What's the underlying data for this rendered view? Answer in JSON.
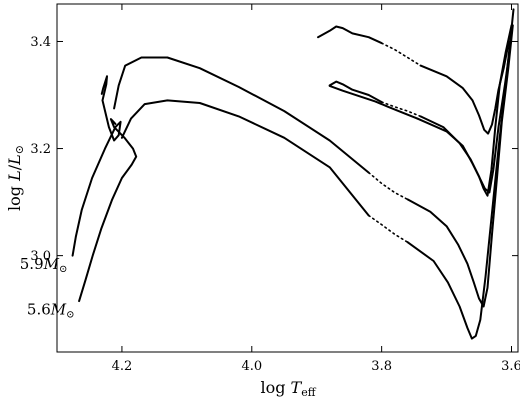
{
  "chart_data": {
    "type": "line",
    "title": "",
    "xlabel": "log T_eff",
    "ylabel": "log L/L_sun",
    "xlim": [
      4.3,
      3.59
    ],
    "ylim": [
      2.82,
      3.47
    ],
    "x_inverted": true,
    "grid": false,
    "xticks": [
      4.2,
      4.0,
      3.8,
      3.6
    ],
    "yticks": [
      3.0,
      3.2,
      3.4
    ],
    "xtick_labels": [
      "4.2",
      "4.0",
      "3.8",
      "3.6"
    ],
    "ytick_labels": [
      "3.0",
      "3.2",
      "3.4"
    ],
    "series": [
      {
        "name": "5.9M☉",
        "segments": [
          {
            "style": "solid",
            "x": [
              4.276,
              4.271,
              4.262,
              4.246,
              4.226,
              4.21,
              4.202,
              4.205,
              4.212,
              4.22,
              4.23,
              4.224,
              4.223,
              4.229,
              4.231
            ],
            "y": [
              3.0,
              3.035,
              3.085,
              3.145,
              3.2,
              3.24,
              3.25,
              3.225,
              3.215,
              3.24,
              3.29,
              3.32,
              3.335,
              3.312,
              3.302
            ]
          },
          {
            "style": "solid",
            "x": [
              4.212,
              4.205,
              4.195,
              4.17,
              4.13,
              4.08,
              4.02,
              3.95,
              3.88,
              3.82
            ],
            "y": [
              3.275,
              3.318,
              3.355,
              3.37,
              3.37,
              3.35,
              3.315,
              3.27,
              3.215,
              3.155
            ]
          },
          {
            "style": "dotted",
            "x": [
              3.82,
              3.8,
              3.78,
              3.76
            ],
            "y": [
              3.155,
              3.135,
              3.118,
              3.105
            ]
          },
          {
            "style": "solid",
            "x": [
              3.76,
              3.725,
              3.7,
              3.682,
              3.668,
              3.658,
              3.65,
              3.643,
              3.637,
              3.63,
              3.622,
              3.615,
              3.605,
              3.598
            ],
            "y": [
              3.105,
              3.082,
              3.055,
              3.02,
              2.985,
              2.95,
              2.92,
              2.905,
              2.94,
              3.04,
              3.15,
              3.25,
              3.35,
              3.43
            ]
          }
        ]
      },
      {
        "name": "5.6M☉",
        "segments": [
          {
            "style": "solid",
            "x": [
              4.266,
              4.256,
              4.245,
              4.232,
              4.215,
              4.2,
              4.185,
              4.178,
              4.183,
              4.196,
              4.212,
              4.217,
              4.213,
              4.21
            ],
            "y": [
              2.915,
              2.955,
              3.0,
              3.05,
              3.105,
              3.145,
              3.17,
              3.185,
              3.2,
              3.22,
              3.24,
              3.255,
              3.25,
              3.246
            ]
          },
          {
            "style": "solid",
            "x": [
              4.2,
              4.186,
              4.165,
              4.13,
              4.08,
              4.02,
              3.95,
              3.88,
              3.82
            ],
            "y": [
              3.22,
              3.256,
              3.283,
              3.29,
              3.285,
              3.26,
              3.22,
              3.165,
              3.075
            ]
          },
          {
            "style": "dotted",
            "x": [
              3.82,
              3.8,
              3.78,
              3.76
            ],
            "y": [
              3.075,
              3.058,
              3.04,
              3.025
            ]
          },
          {
            "style": "solid",
            "x": [
              3.76,
              3.72,
              3.698,
              3.68,
              3.668,
              3.661,
              3.655,
              3.648,
              3.64,
              3.63,
              3.62,
              3.61,
              3.602,
              3.597
            ],
            "y": [
              3.025,
              2.99,
              2.95,
              2.905,
              2.865,
              2.845,
              2.85,
              2.88,
              2.96,
              3.08,
              3.2,
              3.31,
              3.4,
              3.46
            ]
          }
        ]
      },
      {
        "name": "",
        "segments": [
          {
            "style": "solid",
            "x": [
              3.898,
              3.88,
              3.87,
              3.86,
              3.845,
              3.82,
              3.8
            ],
            "y": [
              3.408,
              3.42,
              3.428,
              3.425,
              3.415,
              3.408,
              3.397
            ]
          },
          {
            "style": "dotted",
            "x": [
              3.8,
              3.78,
              3.76,
              3.74
            ],
            "y": [
              3.397,
              3.385,
              3.37,
              3.355
            ]
          },
          {
            "style": "solid",
            "x": [
              3.74,
              3.7,
              3.675,
              3.66,
              3.65,
              3.642,
              3.636,
              3.63,
              3.625,
              3.62,
              3.612,
              3.604
            ],
            "y": [
              3.355,
              3.335,
              3.313,
              3.29,
              3.262,
              3.235,
              3.228,
              3.245,
              3.275,
              3.31,
              3.35,
              3.4
            ]
          }
        ]
      },
      {
        "name": "",
        "segments": [
          {
            "style": "solid",
            "x": [
              3.88,
              3.87,
              3.86,
              3.845,
              3.82,
              3.8
            ],
            "y": [
              3.318,
              3.325,
              3.32,
              3.31,
              3.3,
              3.287
            ]
          },
          {
            "style": "dotted",
            "x": [
              3.8,
              3.78,
              3.76,
              3.74
            ],
            "y": [
              3.287,
              3.278,
              3.27,
              3.26
            ]
          },
          {
            "style": "solid",
            "x": [
              3.74,
              3.705,
              3.68,
              3.663,
              3.651,
              3.641,
              3.634,
              3.628,
              3.62,
              3.61,
              3.601
            ],
            "y": [
              3.26,
              3.24,
              3.21,
              3.18,
              3.15,
              3.125,
              3.118,
              3.16,
              3.24,
              3.32,
              3.4
            ]
          }
        ]
      },
      {
        "name": "",
        "segments": [
          {
            "style": "solid",
            "x": [
              3.88,
              3.86,
              3.835,
              3.81,
              3.79,
              3.77,
              3.745
            ],
            "y": [
              3.317,
              3.308,
              3.298,
              3.288,
              3.278,
              3.268,
              3.256
            ]
          },
          {
            "style": "solid",
            "x": [
              3.745,
              3.7,
              3.675,
              3.66,
              3.65,
              3.643,
              3.637,
              3.631,
              3.625,
              3.618,
              3.609,
              3.6
            ],
            "y": [
              3.256,
              3.232,
              3.205,
              3.172,
              3.148,
              3.125,
              3.112,
              3.16,
              3.24,
              3.32,
              3.38,
              3.43
            ]
          }
        ]
      }
    ],
    "annotations": [
      {
        "text": "5.9M",
        "sub": "⊙",
        "x": 4.284,
        "y": 2.975,
        "anchor": "end"
      },
      {
        "text": "5.6M",
        "sub": "⊙",
        "x": 4.273,
        "y": 2.89,
        "anchor": "end"
      }
    ]
  }
}
